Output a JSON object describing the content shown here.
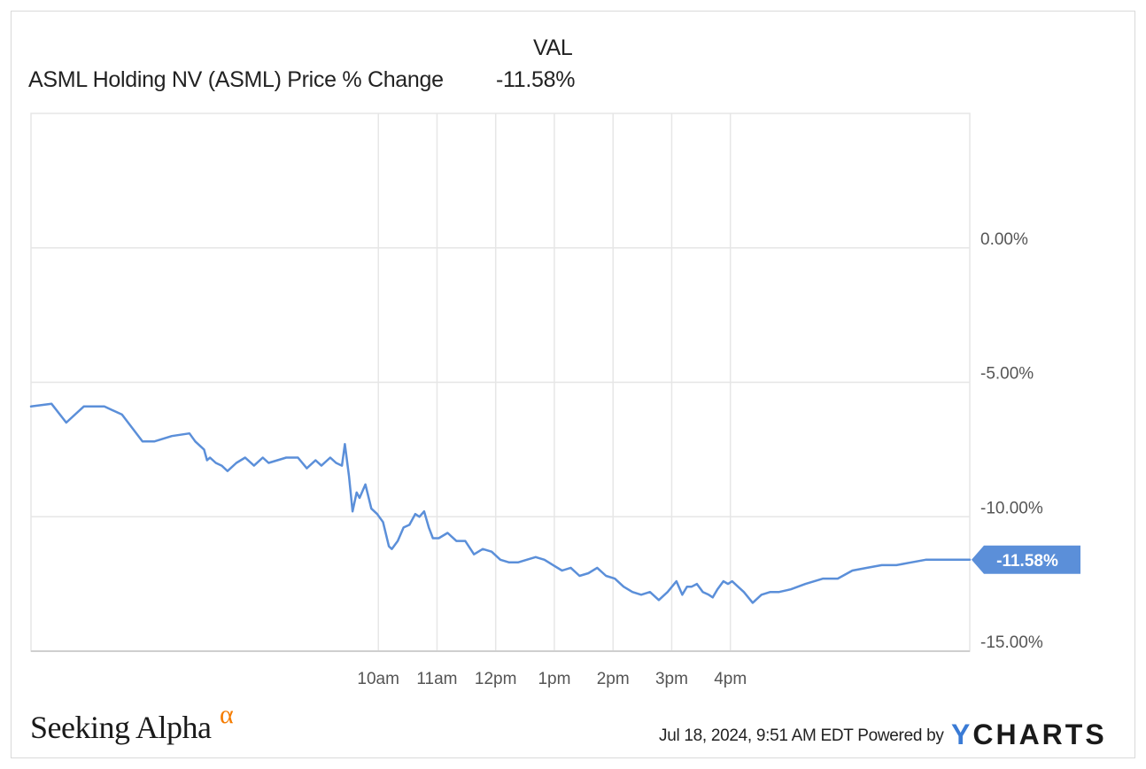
{
  "legend": {
    "column_header": "VAL",
    "series_name": "ASML Holding NV (ASML) Price % Change",
    "series_value": "-11.58%"
  },
  "footer": {
    "brand": "Seeking Alpha",
    "brand_mark": "α",
    "timestamp": "Jul 18, 2024, 9:51 AM EDT",
    "powered_by": "Powered by",
    "logo_y": "Y",
    "logo_rest": "CHARTS"
  },
  "colors": {
    "line": "#5b8fd9",
    "badge": "#5b8fd9",
    "grid": "#e6e6e6",
    "axis_text": "#555555",
    "brand_alpha": "#f57c00"
  },
  "chart_data": {
    "type": "line",
    "title": "",
    "xlabel": "",
    "ylabel": "",
    "y_unit": "%",
    "ylim": [
      -15,
      5
    ],
    "xlim": [
      0,
      16
    ],
    "x_ticks": [
      {
        "x": 5.92,
        "label": "10am"
      },
      {
        "x": 6.92,
        "label": "11am"
      },
      {
        "x": 7.92,
        "label": "12pm"
      },
      {
        "x": 8.92,
        "label": "1pm"
      },
      {
        "x": 9.92,
        "label": "2pm"
      },
      {
        "x": 10.92,
        "label": "3pm"
      },
      {
        "x": 11.92,
        "label": "4pm"
      }
    ],
    "y_ticks": [
      {
        "y": 0,
        "label": "0.00%"
      },
      {
        "y": -5,
        "label": "-5.00%"
      },
      {
        "y": -10,
        "label": "-10.00%"
      },
      {
        "y": -15,
        "label": "-15.00%"
      }
    ],
    "grid": true,
    "last_value_label": "-11.58%",
    "series": [
      {
        "name": "ASML Holding NV (ASML) Price % Change",
        "x": [
          0.0,
          0.35,
          0.6,
          0.9,
          1.25,
          1.55,
          1.9,
          2.1,
          2.4,
          2.7,
          2.8,
          2.95,
          3.0,
          3.05,
          3.15,
          3.25,
          3.35,
          3.5,
          3.65,
          3.8,
          3.95,
          4.05,
          4.2,
          4.35,
          4.55,
          4.7,
          4.85,
          4.95,
          5.1,
          5.2,
          5.3,
          5.35,
          5.42,
          5.48,
          5.55,
          5.6,
          5.7,
          5.8,
          5.9,
          6.0,
          6.1,
          6.15,
          6.25,
          6.35,
          6.45,
          6.55,
          6.62,
          6.7,
          6.78,
          6.85,
          6.95,
          7.1,
          7.25,
          7.4,
          7.55,
          7.7,
          7.85,
          8.0,
          8.15,
          8.3,
          8.45,
          8.6,
          8.75,
          8.9,
          9.05,
          9.2,
          9.35,
          9.5,
          9.65,
          9.8,
          9.95,
          10.1,
          10.25,
          10.4,
          10.55,
          10.7,
          10.85,
          11.0,
          11.1,
          11.18,
          11.26,
          11.35,
          11.45,
          11.55,
          11.62,
          11.7,
          11.8,
          11.88,
          11.95,
          12.05,
          12.15,
          12.3,
          12.45,
          12.6,
          12.75,
          12.95,
          13.2,
          13.5,
          13.75,
          14.0,
          14.25,
          14.5,
          14.75,
          15.0,
          15.25,
          15.5,
          15.75,
          16.0
        ],
        "y": [
          -5.9,
          -5.8,
          -6.5,
          -5.9,
          -5.9,
          -6.2,
          -7.2,
          -7.2,
          -7.0,
          -6.9,
          -7.2,
          -7.5,
          -7.9,
          -7.8,
          -8.0,
          -8.1,
          -8.3,
          -8.0,
          -7.8,
          -8.1,
          -7.8,
          -8.0,
          -7.9,
          -7.8,
          -7.8,
          -8.2,
          -7.9,
          -8.1,
          -7.8,
          -8.0,
          -8.1,
          -7.3,
          -8.5,
          -9.8,
          -9.1,
          -9.3,
          -8.8,
          -9.7,
          -9.9,
          -10.2,
          -11.1,
          -11.2,
          -10.9,
          -10.4,
          -10.3,
          -9.9,
          -10.0,
          -9.8,
          -10.4,
          -10.8,
          -10.8,
          -10.6,
          -10.9,
          -10.9,
          -11.4,
          -11.2,
          -11.3,
          -11.6,
          -11.7,
          -11.7,
          -11.6,
          -11.5,
          -11.6,
          -11.8,
          -12.0,
          -11.9,
          -12.2,
          -12.1,
          -11.9,
          -12.2,
          -12.3,
          -12.6,
          -12.8,
          -12.9,
          -12.8,
          -13.1,
          -12.8,
          -12.4,
          -12.9,
          -12.6,
          -12.6,
          -12.5,
          -12.8,
          -12.9,
          -13.0,
          -12.7,
          -12.4,
          -12.5,
          -12.4,
          -12.6,
          -12.8,
          -13.2,
          -12.9,
          -12.8,
          -12.8,
          -12.7,
          -12.5,
          -12.3,
          -12.3,
          -12.0,
          -11.9,
          -11.8,
          -11.8,
          -11.7,
          -11.6,
          -11.6,
          -11.6,
          -11.6
        ]
      }
    ]
  }
}
